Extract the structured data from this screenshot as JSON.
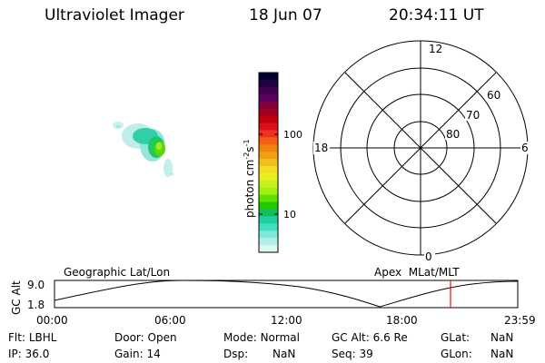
{
  "header": {
    "instrument": "Ultraviolet Imager",
    "date": "18 Jun 07",
    "time": "20:34:11 UT"
  },
  "colorbar": {
    "label": "photon cm⁻²s⁻¹",
    "label_parts": [
      "photon cm",
      "-2",
      "s",
      "-1"
    ],
    "ticks": [
      {
        "label": "100",
        "value": 100
      },
      {
        "label": "10",
        "value": 10
      }
    ],
    "colors": [
      "#000030",
      "#200040",
      "#400050",
      "#5a0060",
      "#800040",
      "#a00020",
      "#c00010",
      "#d81018",
      "#f03020",
      "#f06010",
      "#f08010",
      "#f0a010",
      "#f0c020",
      "#f0e020",
      "#e8f020",
      "#c8f020",
      "#a0f010",
      "#60e000",
      "#20c800",
      "#10c060",
      "#20d0a0",
      "#40e0c0",
      "#80e8d8",
      "#b0f0e8",
      "#d8f8f0"
    ]
  },
  "polar_plot": {
    "clock_labels": {
      "top": "12",
      "left": "18",
      "right": "6",
      "bottom": "0"
    },
    "latitude_labels": [
      "60",
      "70",
      "80"
    ]
  },
  "timeline": {
    "left_title": "Geographic Lat/Lon",
    "right_title": "Apex  MLat/MLT",
    "axis_label": "GC Alt",
    "y_ticks": [
      "9.0",
      "1.8"
    ],
    "x_ticks": [
      "00:00",
      "06:00",
      "12:00",
      "18:00",
      "23:59"
    ],
    "current_time": "20:34"
  },
  "info": {
    "row1": [
      {
        "key": "Flt:",
        "value": "LBHL"
      },
      {
        "key": "Door:",
        "value": "Open"
      },
      {
        "key": "Mode:",
        "value": "Normal"
      },
      {
        "key": "GC Alt:",
        "value": "6.6 Re"
      },
      {
        "key": "GLat:",
        "value": "NaN"
      }
    ],
    "row2": [
      {
        "key": "IP:",
        "value": "36.0"
      },
      {
        "key": "Gain:",
        "value": "14"
      },
      {
        "key": "Dsp:",
        "value": "NaN"
      },
      {
        "key": "Seq:",
        "value": "39"
      },
      {
        "key": "GLon:",
        "value": "NaN"
      }
    ]
  },
  "colors": {
    "marker": "#ff0000",
    "foreground": "#000000",
    "background": "#ffffff"
  }
}
